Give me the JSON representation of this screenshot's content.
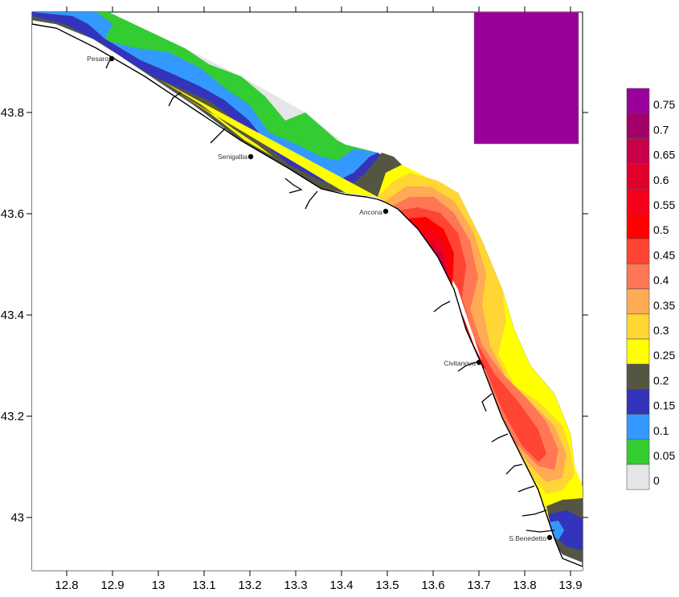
{
  "map": {
    "x_ticks": [
      "12.8",
      "12.9",
      "13",
      "13.1",
      "13.2",
      "13.3",
      "13.4",
      "13.5",
      "13.6",
      "13.7",
      "13.8",
      "13.9"
    ],
    "y_ticks": [
      "43.8",
      "43.6",
      "43.4",
      "43.2",
      "43"
    ],
    "cities": [
      {
        "name": "Pesaro"
      },
      {
        "name": "Senigallia"
      },
      {
        "name": "Ancona"
      },
      {
        "name": "Civitanova"
      },
      {
        "name": "S.Benedetto"
      }
    ],
    "legend": {
      "levels": [
        {
          "label": "0.75",
          "color": "#990099"
        },
        {
          "label": "0.7",
          "color": "#a3006b"
        },
        {
          "label": "0.65",
          "color": "#c8004a"
        },
        {
          "label": "0.6",
          "color": "#e0002a"
        },
        {
          "label": "0.55",
          "color": "#f5001a"
        },
        {
          "label": "0.5",
          "color": "#ff0000"
        },
        {
          "label": "0.45",
          "color": "#ff4433"
        },
        {
          "label": "0.4",
          "color": "#ff7755"
        },
        {
          "label": "0.35",
          "color": "#ffaa55"
        },
        {
          "label": "0.3",
          "color": "#ffd633"
        },
        {
          "label": "0.25",
          "color": "#ffff00"
        },
        {
          "label": "0.2",
          "color": "#555544"
        },
        {
          "label": "0.15",
          "color": "#3333bb"
        },
        {
          "label": "0.1",
          "color": "#3399ff"
        },
        {
          "label": "0.05",
          "color": "#33cc33"
        },
        {
          "label": "0",
          "color": "#e6e6e6"
        }
      ]
    }
  }
}
